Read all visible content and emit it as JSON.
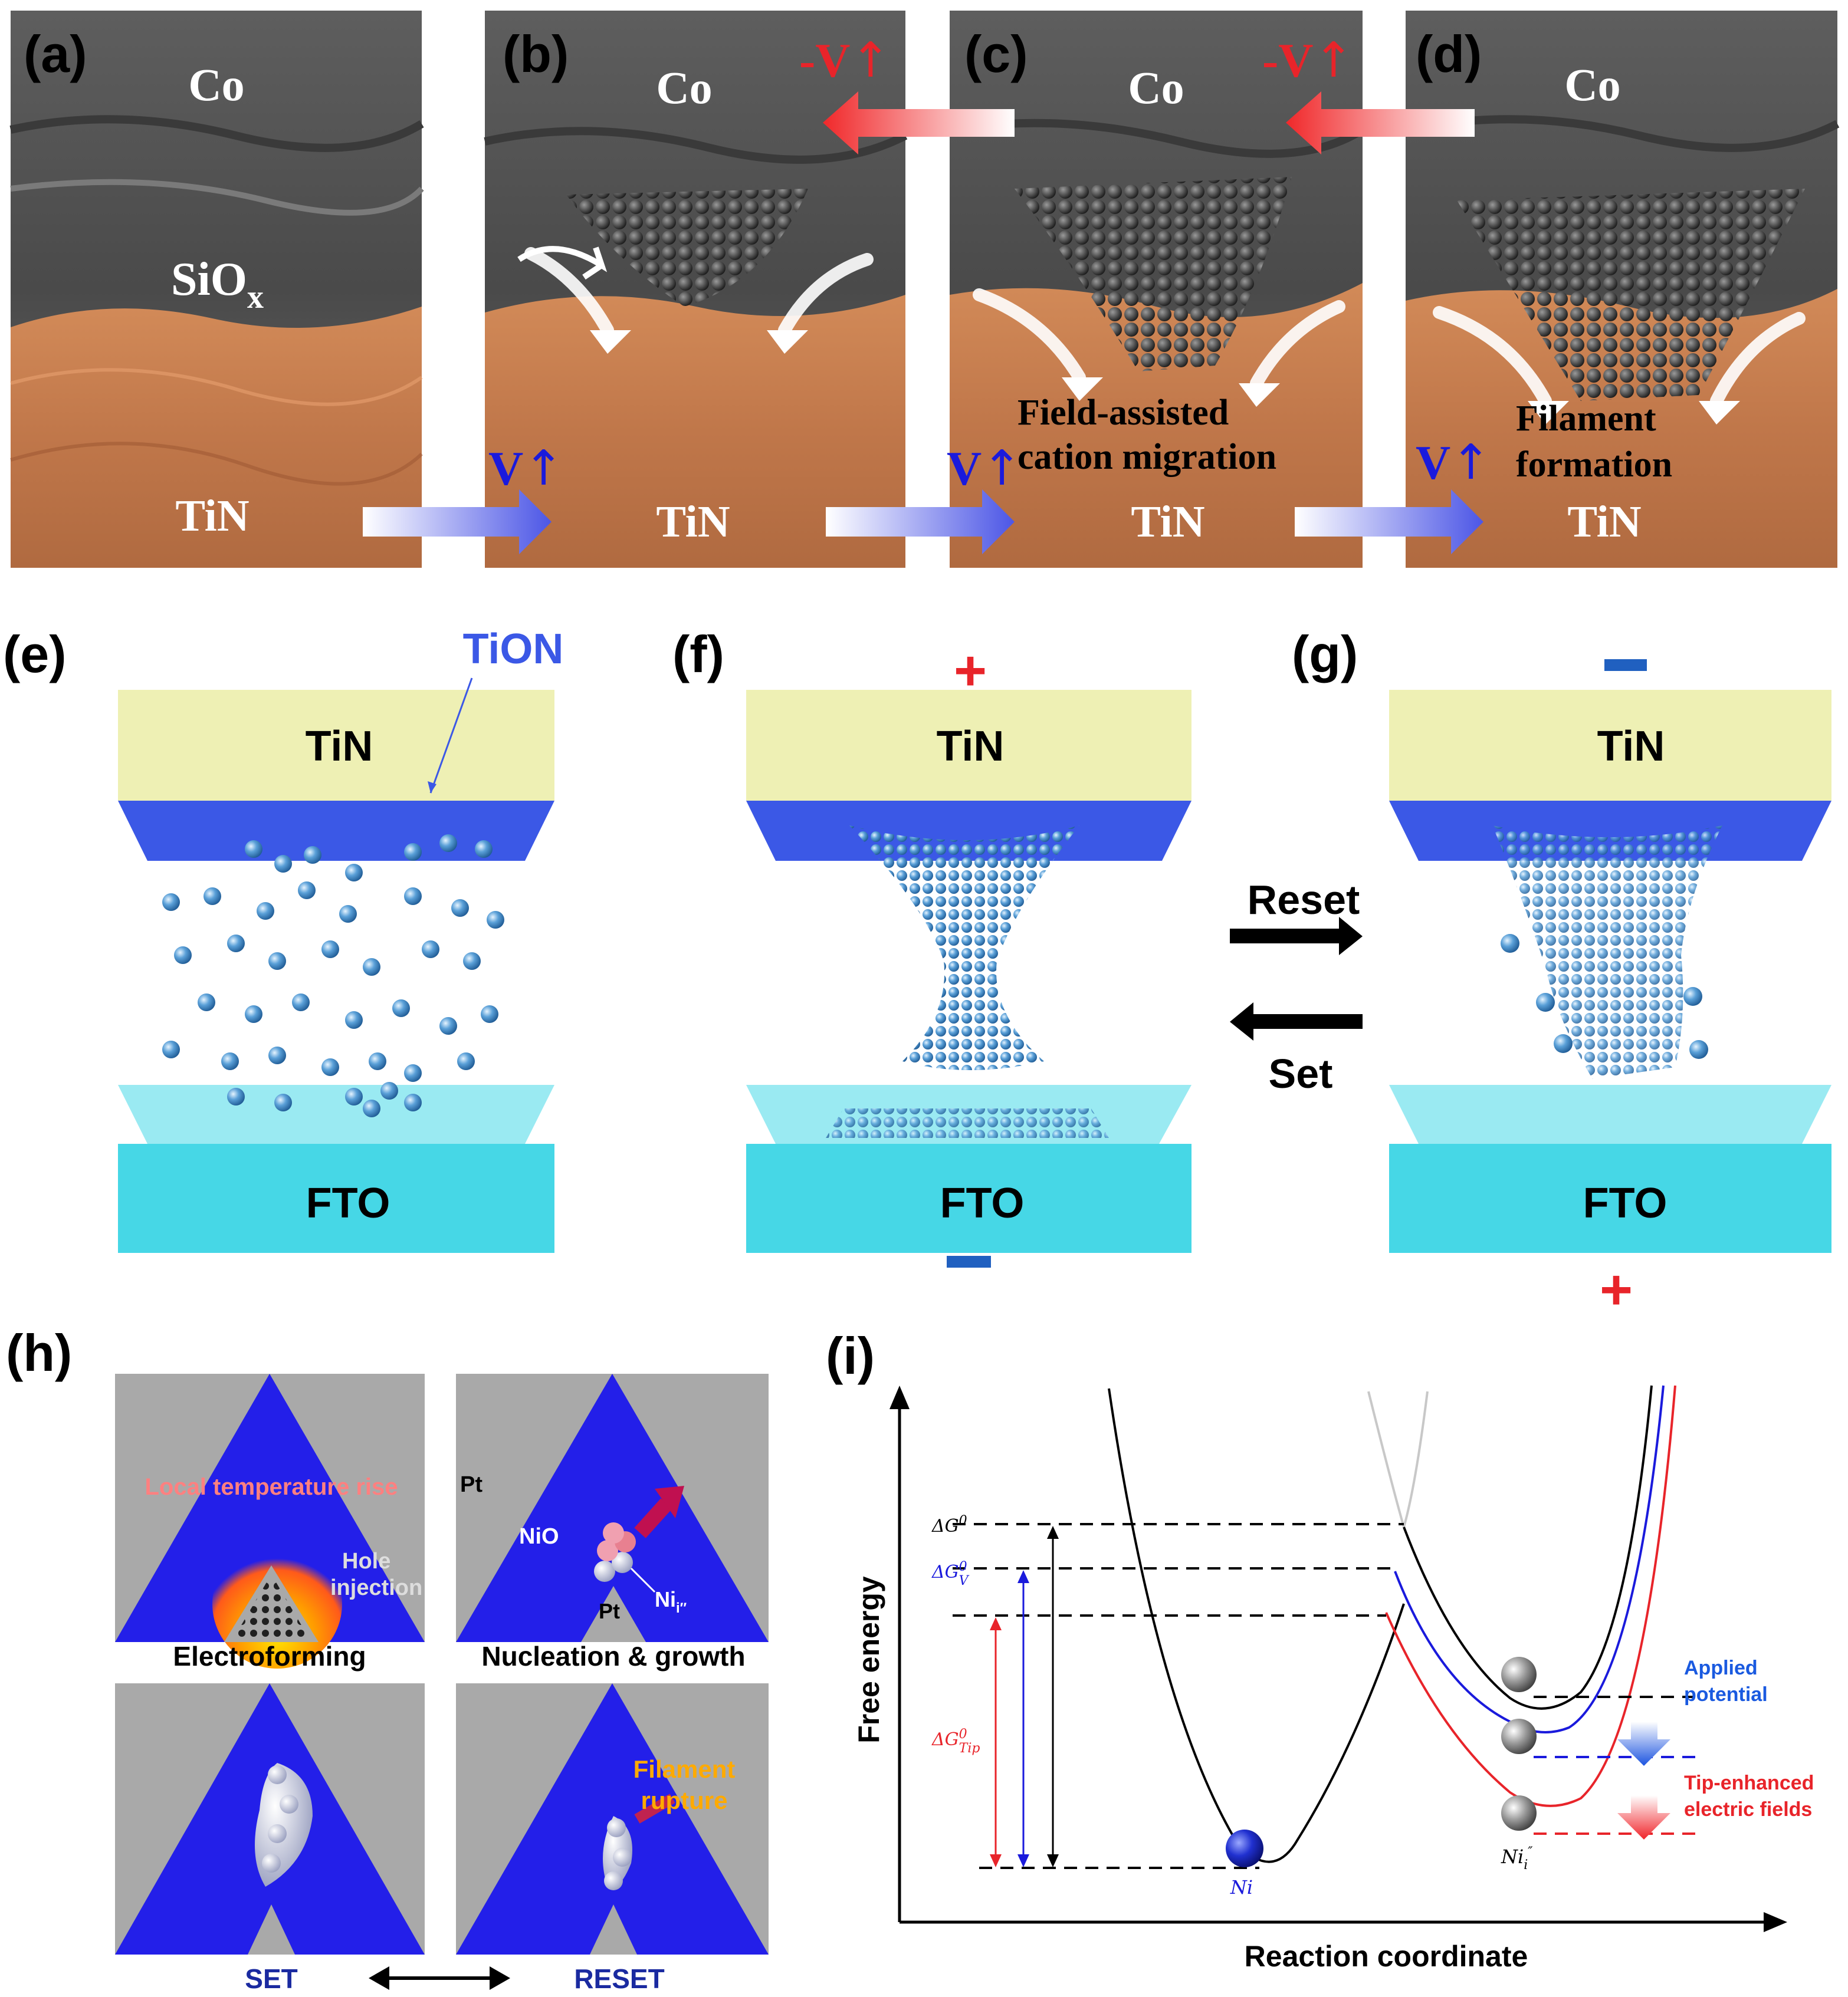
{
  "panel_labels": [
    "(a)",
    "(b)",
    "(c)",
    "(d)",
    "(e)",
    "(f)",
    "(g)",
    "(h)",
    "(i)"
  ],
  "top_row": {
    "co": "Co",
    "siox_base": "SiO",
    "siox_sub": "x",
    "tin": "TiN",
    "voltage_neg": "-V",
    "voltage_pos": "V",
    "up_arrow": "↑",
    "field_assisted_line1": "Field-assisted",
    "field_assisted_line2": "cation migration",
    "filament_line1": "Filament",
    "filament_line2": "formation"
  },
  "middle_row": {
    "tion": "TiON",
    "tin": "TiN",
    "fto": "FTO",
    "plus": "+",
    "minus": "−",
    "reset": "Reset",
    "set": "Set"
  },
  "panel_h": {
    "local_temp": "Local temperature rise",
    "hole": "Hole",
    "injection": "injection",
    "pt": "Pt",
    "nio": "NiO",
    "ni_ion": "Ni",
    "ni_ion_charge": "i″",
    "filament": "Filament",
    "rupture": "rupture",
    "electroforming": "Electroforming",
    "nucleation": "Nucleation & growth",
    "set": "SET",
    "reset": "RESET"
  },
  "panel_i": {
    "ylabel": "Free energy",
    "xlabel": "Reaction coordinate",
    "dg0": "ΔG",
    "dg0_sup": "0",
    "dgv": "ΔG",
    "dgv_sup": "0",
    "dgv_sub": "V",
    "dgtip": "ΔG",
    "dgtip_sup": "0",
    "dgtip_sub": "Tip",
    "ni_label": "Ni",
    "nii_label": "Ni",
    "nii_sub": "i",
    "nii_sup": "″",
    "applied1": "Applied",
    "applied2": "potential",
    "tip1": "Tip-enhanced",
    "tip2": "electric fields"
  },
  "colors": {
    "red": "#e8242a",
    "blue_text": "#1a1adc",
    "tion_blue": "#3b58e6",
    "tin_yellow": "#eef0b4",
    "fto_cyan": "#46d7e6",
    "h_blue": "#1410f0",
    "h_gray": "#a9a9a9"
  }
}
